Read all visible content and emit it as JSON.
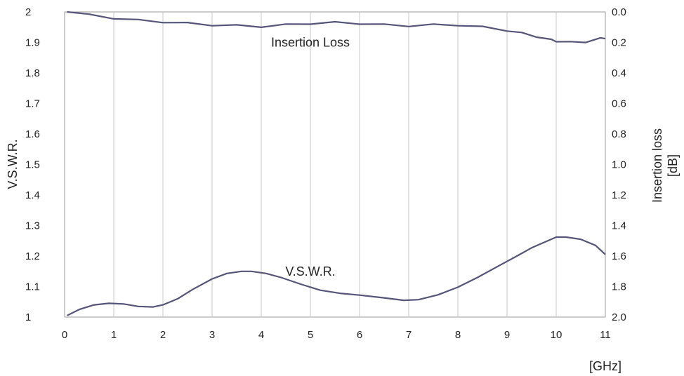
{
  "chart_data": {
    "type": "line",
    "title": "",
    "xlabel": "[GHz]",
    "ylabel": "V.S.W.R.",
    "y2label_lines": [
      "Insertion loss",
      "[dB]"
    ],
    "xlim": [
      0,
      11
    ],
    "ylim": [
      1,
      2
    ],
    "y2lim": [
      0,
      2
    ],
    "y2_inverted": true,
    "grid": "vertical",
    "x_ticks": [
      "0",
      "1",
      "2",
      "3",
      "4",
      "5",
      "6",
      "7",
      "8",
      "9",
      "10",
      "11"
    ],
    "y_ticks": [
      "1",
      "1.1",
      "1.2",
      "1.3",
      "1.4",
      "1.5",
      "1.6",
      "1.7",
      "1.8",
      "1.9",
      "2"
    ],
    "y2_ticks": [
      "2.0",
      "1.8",
      "1.6",
      "1.4",
      "1.2",
      "1.0",
      "0.8",
      "0.6",
      "0.4",
      "0.2",
      "0.0"
    ],
    "series": [
      {
        "name": "V.S.W.R.",
        "axis": "left",
        "color": "#55557a",
        "x": [
          0.05,
          0.3,
          0.6,
          0.9,
          1.2,
          1.5,
          1.8,
          2.0,
          2.3,
          2.6,
          3.0,
          3.3,
          3.6,
          3.8,
          4.1,
          4.4,
          4.8,
          5.2,
          5.6,
          6.0,
          6.5,
          6.9,
          7.2,
          7.6,
          8.0,
          8.4,
          8.8,
          9.2,
          9.5,
          9.8,
          10.0,
          10.2,
          10.5,
          10.8,
          11.0
        ],
        "y": [
          1.005,
          1.025,
          1.04,
          1.045,
          1.043,
          1.035,
          1.033,
          1.04,
          1.06,
          1.09,
          1.125,
          1.143,
          1.15,
          1.15,
          1.143,
          1.13,
          1.108,
          1.088,
          1.078,
          1.072,
          1.063,
          1.055,
          1.057,
          1.073,
          1.098,
          1.13,
          1.165,
          1.2,
          1.227,
          1.248,
          1.262,
          1.262,
          1.255,
          1.235,
          1.205
        ]
      },
      {
        "name": "Insertion Loss",
        "axis": "right",
        "color": "#55557a",
        "x": [
          0.05,
          0.5,
          1.0,
          1.5,
          2.0,
          2.5,
          3.0,
          3.5,
          4.0,
          4.5,
          5.0,
          5.5,
          6.0,
          6.5,
          7.0,
          7.5,
          8.0,
          8.5,
          9.0,
          9.3,
          9.6,
          9.9,
          10.0,
          10.3,
          10.6,
          10.9,
          11.0
        ],
        "y": [
          0.0,
          0.02,
          0.04,
          0.055,
          0.065,
          0.075,
          0.085,
          0.09,
          0.095,
          0.085,
          0.075,
          0.07,
          0.075,
          0.085,
          0.09,
          0.085,
          0.085,
          0.1,
          0.12,
          0.14,
          0.16,
          0.185,
          0.19,
          0.2,
          0.195,
          0.175,
          0.175
        ]
      }
    ],
    "annotations": [
      {
        "text": "Insertion Loss",
        "x": 5.0,
        "y": 1.9
      },
      {
        "text": "V.S.W.R.",
        "x": 5.0,
        "y": 1.15
      }
    ]
  }
}
